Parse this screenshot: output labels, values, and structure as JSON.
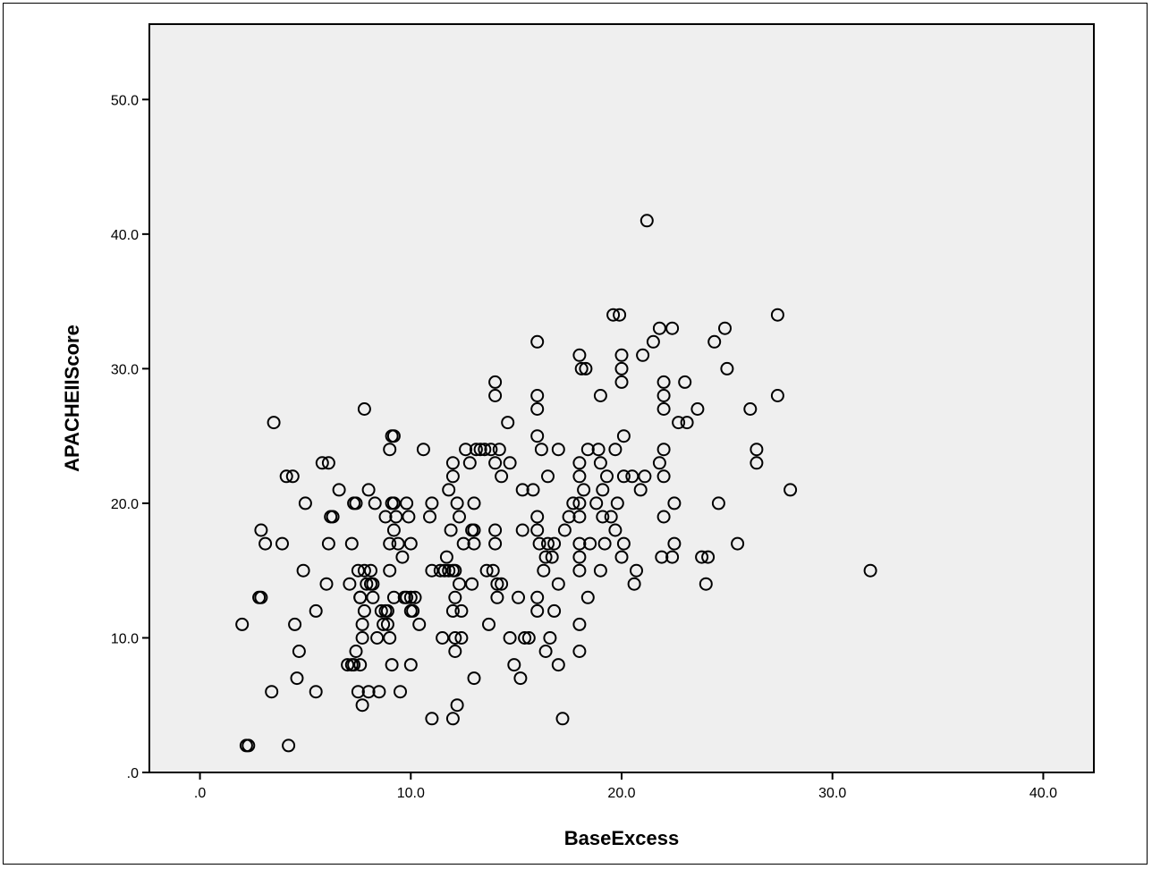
{
  "chart_data": {
    "type": "scatter",
    "title": "",
    "xlabel": "BaseExcess",
    "ylabel": "APACHEIIScore",
    "xlim": [
      -2.4,
      42.4
    ],
    "ylim": [
      0,
      55.6
    ],
    "xticks": [
      0,
      10,
      20,
      30,
      40
    ],
    "xtick_labels": [
      ".0",
      "10.0",
      "20.0",
      "30.0",
      "40.0"
    ],
    "yticks": [
      0,
      10,
      20,
      30,
      40,
      50
    ],
    "ytick_labels": [
      ".0",
      "10.0",
      "20.0",
      "30.0",
      "40.0",
      "50.0"
    ],
    "grid": false,
    "legend": "none",
    "colors": {
      "plot_background": "#efefef",
      "marker_stroke": "#000000"
    },
    "points": [
      [
        2.0,
        11
      ],
      [
        2.2,
        2
      ],
      [
        2.3,
        2
      ],
      [
        2.8,
        13
      ],
      [
        2.9,
        13
      ],
      [
        2.9,
        18
      ],
      [
        3.1,
        17
      ],
      [
        3.4,
        6
      ],
      [
        3.5,
        26
      ],
      [
        3.9,
        17
      ],
      [
        4.1,
        22
      ],
      [
        4.2,
        2
      ],
      [
        4.4,
        22
      ],
      [
        4.5,
        11
      ],
      [
        4.6,
        7
      ],
      [
        4.7,
        9
      ],
      [
        4.9,
        15
      ],
      [
        5.0,
        20
      ],
      [
        5.5,
        6
      ],
      [
        5.5,
        12
      ],
      [
        5.8,
        23
      ],
      [
        6.0,
        14
      ],
      [
        6.1,
        23
      ],
      [
        6.1,
        17
      ],
      [
        6.2,
        19
      ],
      [
        6.3,
        19
      ],
      [
        6.6,
        21
      ],
      [
        7.0,
        8
      ],
      [
        7.1,
        14
      ],
      [
        7.2,
        8
      ],
      [
        7.2,
        17
      ],
      [
        7.3,
        20
      ],
      [
        7.3,
        8
      ],
      [
        7.4,
        20
      ],
      [
        7.4,
        9
      ],
      [
        7.5,
        6
      ],
      [
        7.5,
        15
      ],
      [
        7.6,
        13
      ],
      [
        7.6,
        8
      ],
      [
        7.6,
        13
      ],
      [
        7.7,
        11
      ],
      [
        7.7,
        10
      ],
      [
        7.7,
        5
      ],
      [
        7.8,
        27
      ],
      [
        7.8,
        12
      ],
      [
        7.8,
        15
      ],
      [
        7.9,
        14
      ],
      [
        8.0,
        6
      ],
      [
        8.0,
        21
      ],
      [
        8.1,
        14
      ],
      [
        8.1,
        15
      ],
      [
        8.2,
        14
      ],
      [
        8.2,
        13
      ],
      [
        8.3,
        20
      ],
      [
        8.4,
        10
      ],
      [
        8.5,
        6
      ],
      [
        8.6,
        12
      ],
      [
        8.7,
        11
      ],
      [
        8.8,
        12
      ],
      [
        8.8,
        19
      ],
      [
        8.9,
        11
      ],
      [
        8.9,
        12
      ],
      [
        9.0,
        10
      ],
      [
        9.0,
        24
      ],
      [
        9.0,
        17
      ],
      [
        9.0,
        15
      ],
      [
        9.1,
        25
      ],
      [
        9.1,
        20
      ],
      [
        9.1,
        8
      ],
      [
        9.2,
        25
      ],
      [
        9.2,
        18
      ],
      [
        9.2,
        13
      ],
      [
        9.2,
        20
      ],
      [
        9.3,
        19
      ],
      [
        9.4,
        17
      ],
      [
        9.5,
        6
      ],
      [
        9.6,
        16
      ],
      [
        9.7,
        13
      ],
      [
        9.8,
        13
      ],
      [
        9.8,
        20
      ],
      [
        9.9,
        19
      ],
      [
        10.0,
        17
      ],
      [
        10.0,
        12
      ],
      [
        10.0,
        13
      ],
      [
        10.0,
        8
      ],
      [
        10.1,
        12
      ],
      [
        10.2,
        13
      ],
      [
        10.4,
        11
      ],
      [
        10.6,
        24
      ],
      [
        10.9,
        19
      ],
      [
        11.0,
        20
      ],
      [
        11.0,
        4
      ],
      [
        11.0,
        15
      ],
      [
        11.4,
        15
      ],
      [
        11.5,
        10
      ],
      [
        11.6,
        15
      ],
      [
        11.7,
        16
      ],
      [
        11.8,
        21
      ],
      [
        11.8,
        15
      ],
      [
        11.9,
        18
      ],
      [
        12.0,
        15
      ],
      [
        12.0,
        22
      ],
      [
        12.0,
        23
      ],
      [
        12.0,
        12
      ],
      [
        12.0,
        4
      ],
      [
        12.1,
        13
      ],
      [
        12.1,
        9
      ],
      [
        12.1,
        15
      ],
      [
        12.1,
        10
      ],
      [
        12.2,
        20
      ],
      [
        12.2,
        5
      ],
      [
        12.3,
        14
      ],
      [
        12.3,
        19
      ],
      [
        12.4,
        10
      ],
      [
        12.4,
        12
      ],
      [
        12.5,
        17
      ],
      [
        12.6,
        24
      ],
      [
        12.8,
        23
      ],
      [
        12.9,
        14
      ],
      [
        12.9,
        18
      ],
      [
        13.0,
        20
      ],
      [
        13.0,
        18
      ],
      [
        13.0,
        17
      ],
      [
        13.0,
        7
      ],
      [
        13.1,
        24
      ],
      [
        13.3,
        24
      ],
      [
        13.5,
        24
      ],
      [
        13.6,
        15
      ],
      [
        13.7,
        11
      ],
      [
        13.8,
        24
      ],
      [
        13.9,
        15
      ],
      [
        14.0,
        29
      ],
      [
        14.0,
        28
      ],
      [
        14.0,
        23
      ],
      [
        14.0,
        18
      ],
      [
        14.0,
        17
      ],
      [
        14.1,
        14
      ],
      [
        14.1,
        13
      ],
      [
        14.2,
        24
      ],
      [
        14.3,
        14
      ],
      [
        14.3,
        22
      ],
      [
        14.6,
        26
      ],
      [
        14.7,
        23
      ],
      [
        14.7,
        10
      ],
      [
        14.9,
        8
      ],
      [
        15.1,
        13
      ],
      [
        15.2,
        7
      ],
      [
        15.3,
        21
      ],
      [
        15.3,
        18
      ],
      [
        15.4,
        10
      ],
      [
        15.6,
        10
      ],
      [
        15.8,
        21
      ],
      [
        16.0,
        32
      ],
      [
        16.0,
        28
      ],
      [
        16.0,
        27
      ],
      [
        16.0,
        25
      ],
      [
        16.0,
        19
      ],
      [
        16.0,
        18
      ],
      [
        16.0,
        13
      ],
      [
        16.0,
        12
      ],
      [
        16.1,
        17
      ],
      [
        16.2,
        24
      ],
      [
        16.3,
        15
      ],
      [
        16.4,
        9
      ],
      [
        16.4,
        16
      ],
      [
        16.5,
        22
      ],
      [
        16.5,
        17
      ],
      [
        16.6,
        10
      ],
      [
        16.7,
        16
      ],
      [
        16.8,
        12
      ],
      [
        16.8,
        17
      ],
      [
        17.0,
        8
      ],
      [
        17.0,
        14
      ],
      [
        17.0,
        24
      ],
      [
        17.2,
        4
      ],
      [
        17.3,
        18
      ],
      [
        17.5,
        19
      ],
      [
        17.7,
        20
      ],
      [
        18.0,
        31
      ],
      [
        18.0,
        23
      ],
      [
        18.0,
        22
      ],
      [
        18.0,
        20
      ],
      [
        18.0,
        19
      ],
      [
        18.0,
        17
      ],
      [
        18.0,
        16
      ],
      [
        18.0,
        15
      ],
      [
        18.0,
        11
      ],
      [
        18.0,
        9
      ],
      [
        18.1,
        30
      ],
      [
        18.2,
        21
      ],
      [
        18.3,
        30
      ],
      [
        18.4,
        24
      ],
      [
        18.4,
        13
      ],
      [
        18.5,
        17
      ],
      [
        18.8,
        20
      ],
      [
        18.9,
        24
      ],
      [
        19.0,
        28
      ],
      [
        19.0,
        23
      ],
      [
        19.0,
        15
      ],
      [
        19.1,
        21
      ],
      [
        19.1,
        19
      ],
      [
        19.2,
        17
      ],
      [
        19.3,
        22
      ],
      [
        19.5,
        19
      ],
      [
        19.6,
        34
      ],
      [
        19.7,
        24
      ],
      [
        19.7,
        18
      ],
      [
        19.8,
        20
      ],
      [
        19.9,
        34
      ],
      [
        20.0,
        31
      ],
      [
        20.0,
        30
      ],
      [
        20.0,
        29
      ],
      [
        20.0,
        16
      ],
      [
        20.1,
        25
      ],
      [
        20.1,
        22
      ],
      [
        20.1,
        17
      ],
      [
        20.5,
        22
      ],
      [
        20.6,
        14
      ],
      [
        20.7,
        15
      ],
      [
        20.9,
        21
      ],
      [
        21.0,
        31
      ],
      [
        21.1,
        22
      ],
      [
        21.2,
        41
      ],
      [
        21.5,
        32
      ],
      [
        21.8,
        33
      ],
      [
        21.8,
        23
      ],
      [
        21.9,
        16
      ],
      [
        22.0,
        29
      ],
      [
        22.0,
        28
      ],
      [
        22.0,
        27
      ],
      [
        22.0,
        24
      ],
      [
        22.0,
        22
      ],
      [
        22.0,
        19
      ],
      [
        22.4,
        33
      ],
      [
        22.4,
        16
      ],
      [
        22.5,
        20
      ],
      [
        22.5,
        17
      ],
      [
        22.7,
        26
      ],
      [
        23.0,
        29
      ],
      [
        23.1,
        26
      ],
      [
        23.6,
        27
      ],
      [
        23.8,
        16
      ],
      [
        24.0,
        14
      ],
      [
        24.1,
        16
      ],
      [
        24.4,
        32
      ],
      [
        24.6,
        20
      ],
      [
        24.9,
        33
      ],
      [
        25.0,
        30
      ],
      [
        25.5,
        17
      ],
      [
        26.1,
        27
      ],
      [
        26.4,
        24
      ],
      [
        26.4,
        23
      ],
      [
        27.4,
        34
      ],
      [
        27.4,
        28
      ],
      [
        28.0,
        21
      ],
      [
        31.8,
        15
      ]
    ]
  }
}
